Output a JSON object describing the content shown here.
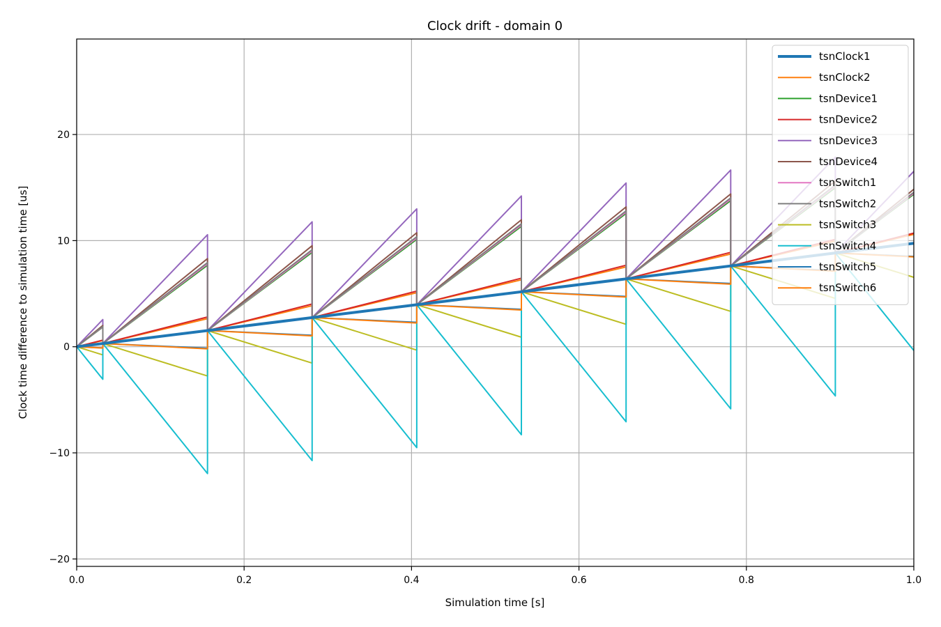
{
  "chart_data": {
    "type": "line",
    "title": "Clock drift - domain 0",
    "xlabel": "Simulation time [s]",
    "ylabel": "Clock time difference to simulation time [us]",
    "xlim": [
      0,
      1
    ],
    "ylim": [
      -20.7,
      29
    ],
    "xticks": [
      0,
      0.2,
      0.4,
      0.6,
      0.8,
      1
    ],
    "xtick_labels": [
      "0.0",
      "0.2",
      "0.4",
      "0.6",
      "0.8",
      "1.0"
    ],
    "yticks": [
      -20,
      -10,
      0,
      10,
      20
    ],
    "ytick_labels": [
      "−20",
      "−10",
      "0",
      "10",
      "20"
    ],
    "grid": true,
    "legend_position": "top-right",
    "sync_times": [
      0,
      0.03125,
      0.15625,
      0.28125,
      0.40625,
      0.53125,
      0.65625,
      0.78125,
      0.90625
    ],
    "series": [
      {
        "name": "tsnClock1",
        "color": "#1f77b4",
        "width": 4,
        "base_slope": 9.75,
        "slope": 9.75
      },
      {
        "name": "tsnClock2",
        "color": "#ff7f0e",
        "width": 2,
        "base_slope": 9.75,
        "slope": 18.75
      },
      {
        "name": "tsnDevice1",
        "color": "#2ca02c",
        "width": 2,
        "base_slope": 9.75,
        "slope": 59
      },
      {
        "name": "tsnDevice2",
        "color": "#d62728",
        "width": 2,
        "base_slope": 9.75,
        "slope": 20
      },
      {
        "name": "tsnDevice3",
        "color": "#9467bd",
        "width": 2,
        "base_slope": 9.75,
        "slope": 82
      },
      {
        "name": "tsnDevice4",
        "color": "#8c564b",
        "width": 2,
        "base_slope": 9.75,
        "slope": 64
      },
      {
        "name": "tsnSwitch1",
        "color": "#e377c2",
        "width": 2,
        "base_slope": 9.75,
        "slope": 60
      },
      {
        "name": "tsnSwitch2",
        "color": "#7f7f7f",
        "width": 2,
        "base_slope": 9.75,
        "slope": 61
      },
      {
        "name": "tsnSwitch3",
        "color": "#bcbd22",
        "width": 2,
        "base_slope": 9.75,
        "slope": -24.5
      },
      {
        "name": "tsnSwitch4",
        "color": "#17becf",
        "width": 2,
        "base_slope": 9.75,
        "slope": -98
      },
      {
        "name": "tsnSwitch5",
        "color": "#1f77b4",
        "width": 2,
        "base_slope": 9.75,
        "slope": -3.5
      },
      {
        "name": "tsnSwitch6",
        "color": "#ff7f0e",
        "width": 2,
        "base_slope": 9.75,
        "slope": -4.0
      }
    ]
  }
}
